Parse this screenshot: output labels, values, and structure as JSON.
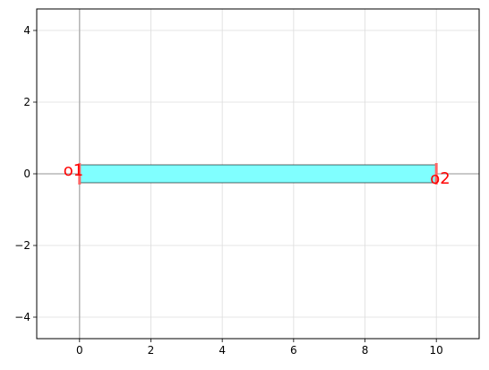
{
  "chart_data": {
    "type": "diagram",
    "title": "",
    "xlabel": "",
    "ylabel": "",
    "xlim": [
      -1.2,
      11.2
    ],
    "ylim": [
      -4.6,
      4.6
    ],
    "xticks": [
      0,
      2,
      4,
      6,
      8,
      10
    ],
    "yticks": [
      -4,
      -2,
      0,
      2,
      4
    ],
    "grid": true,
    "axis_lines": {
      "x0": 0,
      "y0": 0
    },
    "component": {
      "shape": "rectangle",
      "x": [
        0,
        10
      ],
      "y": [
        -0.25,
        0.25
      ],
      "fill": "#80ffff",
      "edge": "#000000"
    },
    "ports": [
      {
        "label": "o1",
        "x": 0,
        "y": 0,
        "orientation": "left",
        "color": "#ff0000"
      },
      {
        "label": "o2",
        "x": 10,
        "y": 0,
        "orientation": "right",
        "color": "#ff0000"
      }
    ]
  }
}
